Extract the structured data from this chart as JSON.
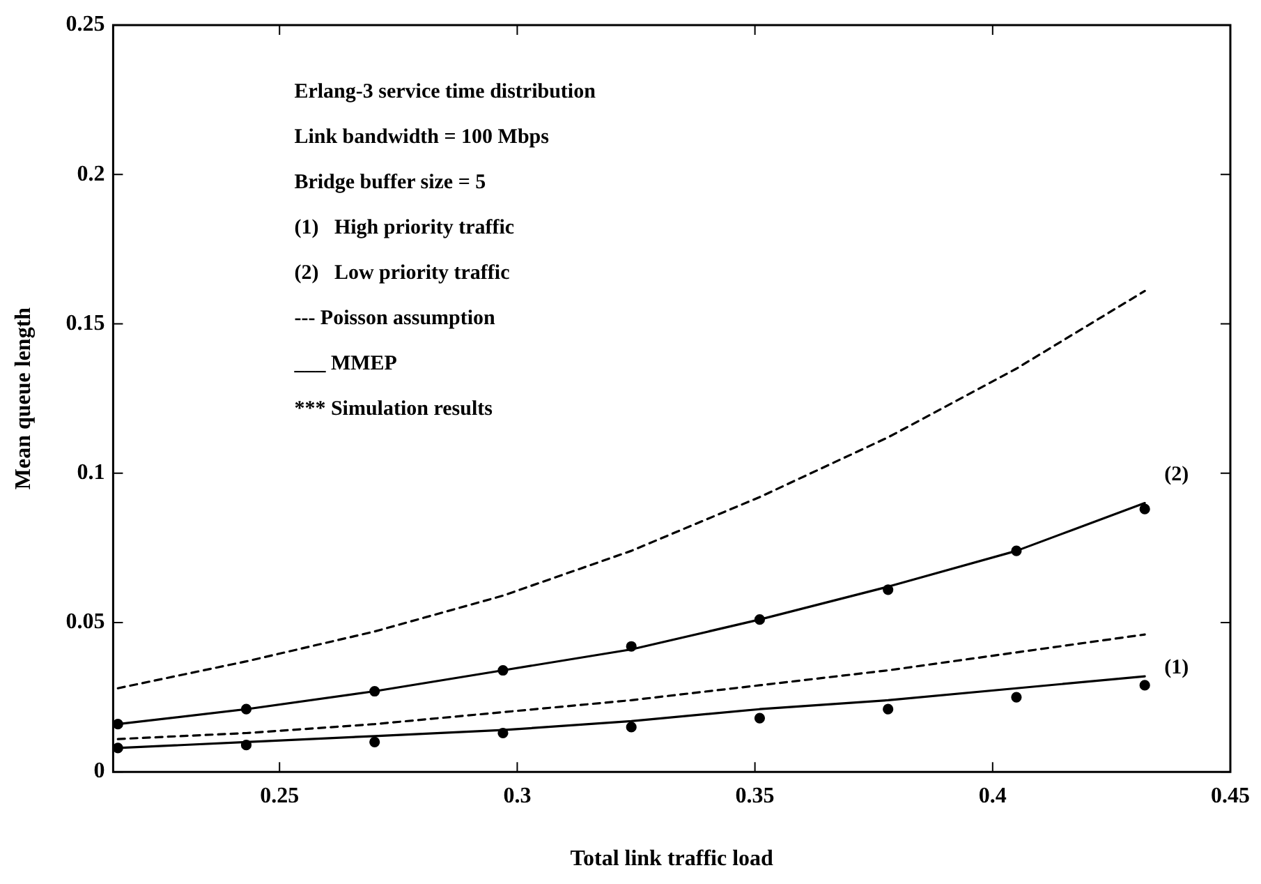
{
  "chart_data": {
    "type": "line",
    "xlabel": "Total link traffic load",
    "ylabel": "Mean queue length",
    "x": [
      0.216,
      0.243,
      0.27,
      0.297,
      0.324,
      0.351,
      0.378,
      0.405,
      0.432
    ],
    "xlim": [
      0.215,
      0.45
    ],
    "xticks": [
      0.25,
      0.3,
      0.35,
      0.4,
      0.45
    ],
    "ylim": [
      0,
      0.25
    ],
    "yticks": [
      0,
      0.05,
      0.1,
      0.15,
      0.2,
      0.25
    ],
    "grid": false,
    "legend": "right",
    "series": [
      {
        "line_style": "dashed",
        "marker": "none",
        "color": "#000000",
        "values": [
          0.028,
          0.037,
          0.047,
          0.059,
          0.074,
          0.092,
          0.112,
          0.135,
          0.161
        ]
      },
      {
        "name": "(2)",
        "line_style": "solid",
        "marker": "none",
        "color": "#000000",
        "values": [
          0.016,
          0.021,
          0.027,
          0.034,
          0.041,
          0.051,
          0.062,
          0.074,
          0.09
        ]
      },
      {
        "type": "scatter",
        "marker": "circle",
        "color": "#000000",
        "values": [
          0.016,
          0.021,
          0.027,
          0.034,
          0.042,
          0.051,
          0.061,
          0.074,
          0.088
        ]
      },
      {
        "line_style": "dashed",
        "marker": "none",
        "color": "#000000",
        "values": [
          0.011,
          0.013,
          0.016,
          0.02,
          0.024,
          0.029,
          0.034,
          0.04,
          0.046
        ]
      },
      {
        "name": "(1)",
        "line_style": "solid",
        "marker": "none",
        "color": "#000000",
        "values": [
          0.008,
          0.01,
          0.012,
          0.014,
          0.017,
          0.021,
          0.024,
          0.028,
          0.032
        ]
      },
      {
        "type": "scatter",
        "marker": "circle",
        "color": "#000000",
        "values": [
          0.008,
          0.009,
          0.01,
          0.013,
          0.015,
          0.018,
          0.021,
          0.025,
          0.029
        ]
      }
    ],
    "annotations": [
      "Erlang-3 service time distribution",
      "Link bandwidth = 100 Mbps",
      "Bridge buffer size = 5",
      "(1)   High priority traffic",
      "(2)   Low priority traffic",
      "--- Poisson assumption",
      "___ MMEP",
      "*** Simulation results"
    ]
  }
}
